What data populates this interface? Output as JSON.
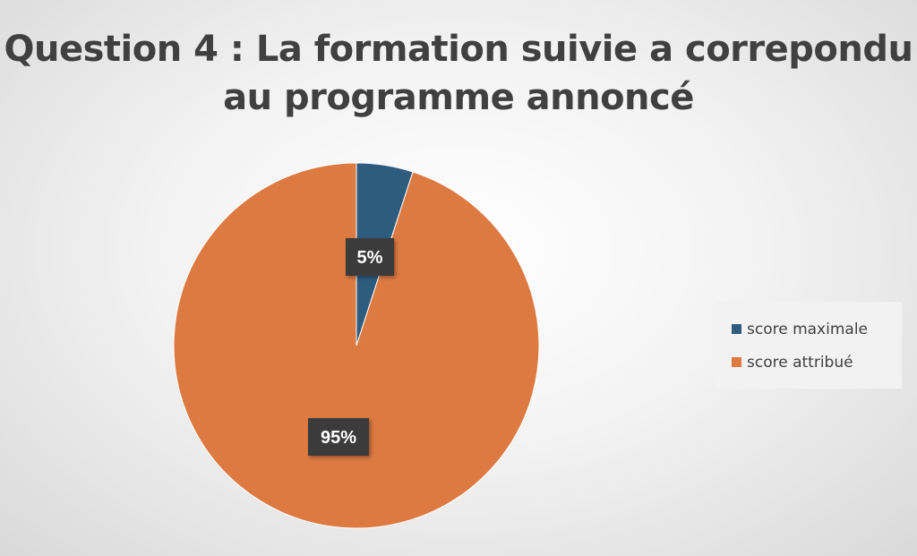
{
  "chart_data": {
    "type": "pie",
    "title": "Question 4 : La formation suivie a correpondu au programme annoncé",
    "slices": [
      {
        "name": "score maximale",
        "value": 5,
        "label": "5%",
        "color": "#2e5c7e"
      },
      {
        "name": "score attribué",
        "value": 95,
        "label": "95%",
        "color": "#dd7a42"
      }
    ],
    "legend_position": "right",
    "data_labels": true
  }
}
